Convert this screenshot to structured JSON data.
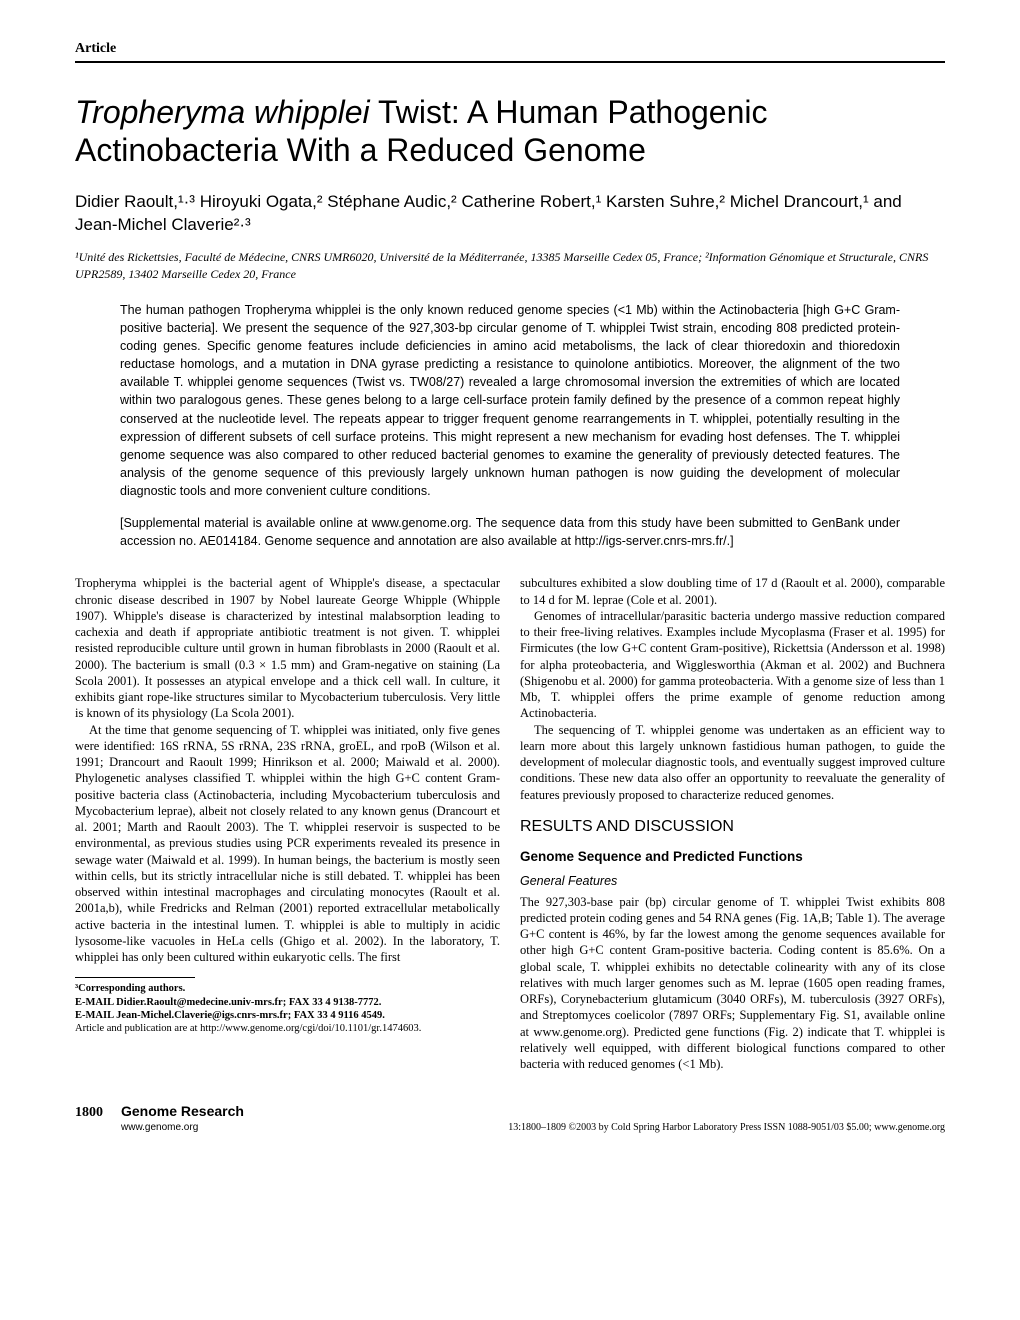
{
  "header": {
    "label": "Article"
  },
  "title": {
    "part1_italic": "Tropheryma whipplei",
    "part2": " Twist: A Human Pathogenic Actinobacteria With a Reduced Genome"
  },
  "authors": "Didier Raoult,¹·³ Hiroyuki Ogata,² Stéphane Audic,² Catherine Robert,¹ Karsten Suhre,² Michel Drancourt,¹ and Jean-Michel Claverie²·³",
  "affiliations": "¹Unité des Rickettsies, Faculté de Médecine, CNRS UMR6020, Université de la Méditerranée, 13385 Marseille Cedex 05, France; ²Information Génomique et Structurale, CNRS UPR2589, 13402 Marseille Cedex 20, France",
  "abstract": "The human pathogen Tropheryma whipplei is the only known reduced genome species (<1 Mb) within the Actinobacteria [high G+C Gram-positive bacteria]. We present the sequence of the 927,303-bp circular genome of T. whipplei Twist strain, encoding 808 predicted protein-coding genes. Specific genome features include deficiencies in amino acid metabolisms, the lack of clear thioredoxin and thioredoxin reductase homologs, and a mutation in DNA gyrase predicting a resistance to quinolone antibiotics. Moreover, the alignment of the two available T. whipplei genome sequences (Twist vs. TW08/27) revealed a large chromosomal inversion the extremities of which are located within two paralogous genes. These genes belong to a large cell-surface protein family defined by the presence of a common repeat highly conserved at the nucleotide level. The repeats appear to trigger frequent genome rearrangements in T. whipplei, potentially resulting in the expression of different subsets of cell surface proteins. This might represent a new mechanism for evading host defenses. The T. whipplei genome sequence was also compared to other reduced bacterial genomes to examine the generality of previously detected features. The analysis of the genome sequence of this previously largely unknown human pathogen is now guiding the development of molecular diagnostic tools and more convenient culture conditions.",
  "supplemental": "[Supplemental material is available online at www.genome.org. The sequence data from this study have been submitted to GenBank under accession no. AE014184. Genome sequence and annotation are also available at http://igs-server.cnrs-mrs.fr/.]",
  "body": {
    "p1": "Tropheryma whipplei is the bacterial agent of Whipple's disease, a spectacular chronic disease described in 1907 by Nobel laureate George Whipple (Whipple 1907). Whipple's disease is characterized by intestinal malabsorption leading to cachexia and death if appropriate antibiotic treatment is not given. T. whipplei resisted reproducible culture until grown in human fibroblasts in 2000 (Raoult et al. 2000). The bacterium is small (0.3 × 1.5 mm) and Gram-negative on staining (La Scola 2001). It possesses an atypical envelope and a thick cell wall. In culture, it exhibits giant rope-like structures similar to Mycobacterium tuberculosis. Very little is known of its physiology (La Scola 2001).",
    "p2": "At the time that genome sequencing of T. whipplei was initiated, only five genes were identified: 16S rRNA, 5S rRNA, 23S rRNA, groEL, and rpoB (Wilson et al. 1991; Drancourt and Raoult 1999; Hinrikson et al. 2000; Maiwald et al. 2000). Phylogenetic analyses classified T. whipplei within the high G+C content Gram-positive bacteria class (Actinobacteria, including Mycobacterium tuberculosis and Mycobacterium leprae), albeit not closely related to any known genus (Drancourt et al. 2001; Marth and Raoult 2003). The T. whipplei reservoir is suspected to be environmental, as previous studies using PCR experiments revealed its presence in sewage water (Maiwald et al. 1999). In human beings, the bacterium is mostly seen within cells, but its strictly intracellular niche is still debated. T. whipplei has been observed within intestinal macrophages and circulating monocytes (Raoult et al. 2001a,b), while Fredricks and Relman (2001) reported extracellular metabolically active bacteria in the intestinal lumen. T. whipplei is able to multiply in acidic lysosome-like vacuoles in HeLa cells (Ghigo et al. 2002). In the laboratory, T. whipplei has only been cultured within eukaryotic cells. The first",
    "p3": "subcultures exhibited a slow doubling time of 17 d (Raoult et al. 2000), comparable to 14 d for M. leprae (Cole et al. 2001).",
    "p4": "Genomes of intracellular/parasitic bacteria undergo massive reduction compared to their free-living relatives. Examples include Mycoplasma (Fraser et al. 1995) for Firmicutes (the low G+C content Gram-positive), Rickettsia (Andersson et al. 1998) for alpha proteobacteria, and Wigglesworthia (Akman et al. 2002) and Buchnera (Shigenobu et al. 2000) for gamma proteobacteria. With a genome size of less than 1 Mb, T. whipplei offers the prime example of genome reduction among Actinobacteria.",
    "p5": "The sequencing of T. whipplei genome was undertaken as an efficient way to learn more about this largely unknown fastidious human pathogen, to guide the development of molecular diagnostic tools, and eventually suggest improved culture conditions. These new data also offer an opportunity to reevaluate the generality of features previously proposed to characterize reduced genomes.",
    "section_results": "RESULTS AND DISCUSSION",
    "subsection_genome": "Genome Sequence and Predicted Functions",
    "subsubsection_general": "General Features",
    "p6": "The 927,303-base pair (bp) circular genome of T. whipplei Twist exhibits 808 predicted protein coding genes and 54 RNA genes (Fig. 1A,B; Table 1). The average G+C content is 46%, by far the lowest among the genome sequences available for other high G+C content Gram-positive bacteria. Coding content is 85.6%. On a global scale, T. whipplei exhibits no detectable colinearity with any of its close relatives with much larger genomes such as M. leprae (1605 open reading frames, ORFs), Corynebacterium glutamicum (3040 ORFs), M. tuberculosis (3927 ORFs), and Streptomyces coelicolor (7897 ORFs; Supplementary Fig. S1, available online at www.genome.org). Predicted gene functions (Fig. 2) indicate that T. whipplei is relatively well equipped, with different biological functions compared to other bacteria with reduced genomes (<1 Mb)."
  },
  "footnote": {
    "corresponding": "³Corresponding authors.",
    "email1": "E-MAIL Didier.Raoult@medecine.univ-mrs.fr; FAX 33 4 9138-7772.",
    "email2": "E-MAIL Jean-Michel.Claverie@igs.cnrs-mrs.fr; FAX 33 4 9116 4549.",
    "article_info": "Article and publication are at http://www.genome.org/cgi/doi/10.1101/gr.1474603."
  },
  "footer": {
    "pagenum": "1800",
    "journal": "Genome Research",
    "url": "www.genome.org",
    "copyright": "13:1800–1809 ©2003 by Cold Spring Harbor Laboratory Press ISSN 1088-9051/03 $5.00; www.genome.org"
  }
}
